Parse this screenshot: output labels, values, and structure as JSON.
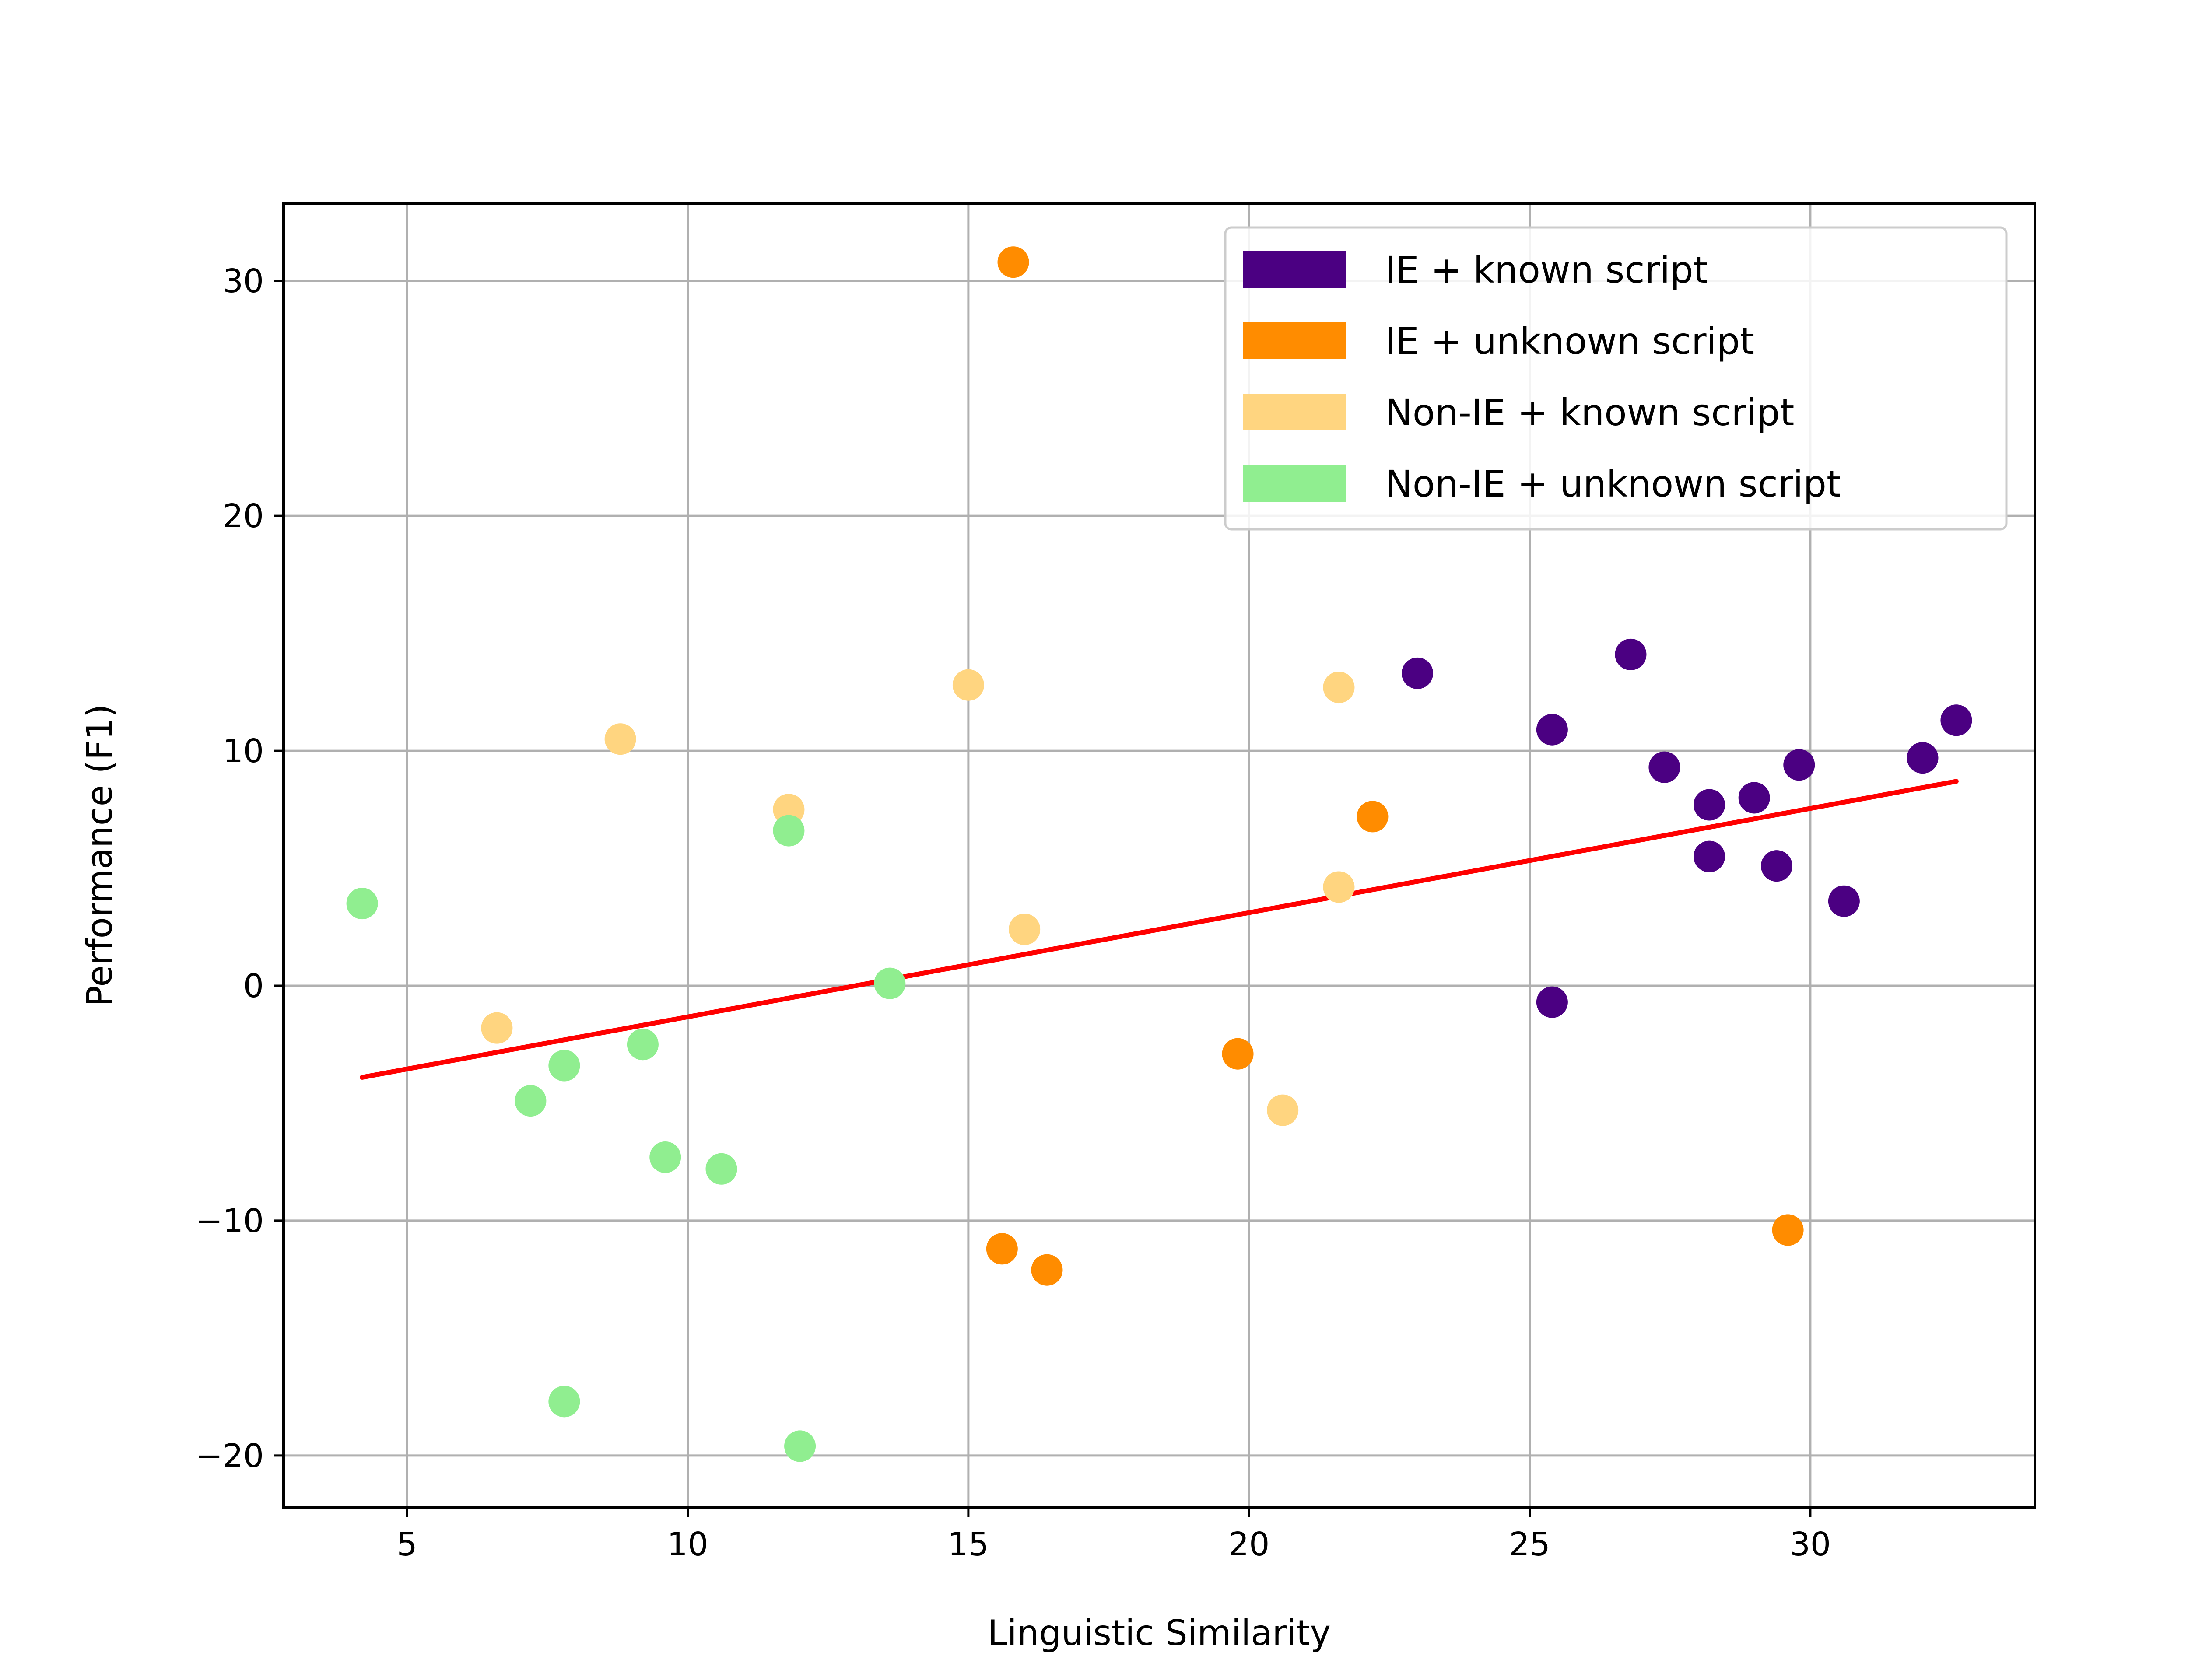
{
  "chart_data": {
    "type": "scatter",
    "title": "",
    "xlabel": "Linguistic Similarity",
    "ylabel": "Performance (F1)",
    "xlim": [
      2.8,
      34.0
    ],
    "ylim": [
      -22.2,
      33.3
    ],
    "xticks": [
      5,
      10,
      15,
      20,
      25,
      30
    ],
    "yticks": [
      -20,
      -10,
      0,
      10,
      20,
      30
    ],
    "xtick_labels": [
      "5",
      "10",
      "15",
      "20",
      "25",
      "30"
    ],
    "ytick_labels": [
      "−20",
      "−10",
      "0",
      "10",
      "20",
      "30"
    ],
    "grid": true,
    "legend_position": "top-right",
    "series": [
      {
        "name": "IE + known script",
        "color": "#4b0082",
        "points": [
          {
            "x": 23.0,
            "y": 13.3
          },
          {
            "x": 25.4,
            "y": 10.9
          },
          {
            "x": 25.4,
            "y": -0.7
          },
          {
            "x": 26.8,
            "y": 14.1
          },
          {
            "x": 27.4,
            "y": 9.3
          },
          {
            "x": 28.2,
            "y": 7.7
          },
          {
            "x": 28.2,
            "y": 5.5
          },
          {
            "x": 29.0,
            "y": 8.0
          },
          {
            "x": 29.4,
            "y": 5.1
          },
          {
            "x": 29.8,
            "y": 9.4
          },
          {
            "x": 30.6,
            "y": 3.6
          },
          {
            "x": 32.0,
            "y": 9.7
          },
          {
            "x": 32.6,
            "y": 11.3
          }
        ]
      },
      {
        "name": "IE + unknown script",
        "color": "#ff8c00",
        "points": [
          {
            "x": 15.8,
            "y": 30.8
          },
          {
            "x": 15.6,
            "y": -11.2
          },
          {
            "x": 16.4,
            "y": -12.1
          },
          {
            "x": 19.8,
            "y": -2.9
          },
          {
            "x": 22.2,
            "y": 7.2
          },
          {
            "x": 29.6,
            "y": -10.4
          }
        ]
      },
      {
        "name": "Non-IE + known script",
        "color": "#ffd580",
        "points": [
          {
            "x": 6.6,
            "y": -1.8
          },
          {
            "x": 8.8,
            "y": 10.5
          },
          {
            "x": 11.8,
            "y": 7.5
          },
          {
            "x": 15.0,
            "y": 12.8
          },
          {
            "x": 16.0,
            "y": 2.4
          },
          {
            "x": 20.6,
            "y": -5.3
          },
          {
            "x": 21.6,
            "y": 12.7
          },
          {
            "x": 21.6,
            "y": 4.2
          }
        ]
      },
      {
        "name": "Non-IE + unknown script",
        "color": "#90ee90",
        "points": [
          {
            "x": 4.2,
            "y": 3.5
          },
          {
            "x": 7.2,
            "y": -4.9
          },
          {
            "x": 7.8,
            "y": -3.4
          },
          {
            "x": 7.8,
            "y": -17.7
          },
          {
            "x": 9.2,
            "y": -2.5
          },
          {
            "x": 9.6,
            "y": -7.3
          },
          {
            "x": 10.6,
            "y": -7.8
          },
          {
            "x": 11.8,
            "y": 6.6
          },
          {
            "x": 12.0,
            "y": -19.6
          },
          {
            "x": 13.6,
            "y": 0.1
          }
        ]
      }
    ],
    "trendline": {
      "color": "#ff0000",
      "x": [
        4.2,
        32.6
      ],
      "y": [
        -3.9,
        8.7
      ]
    }
  }
}
